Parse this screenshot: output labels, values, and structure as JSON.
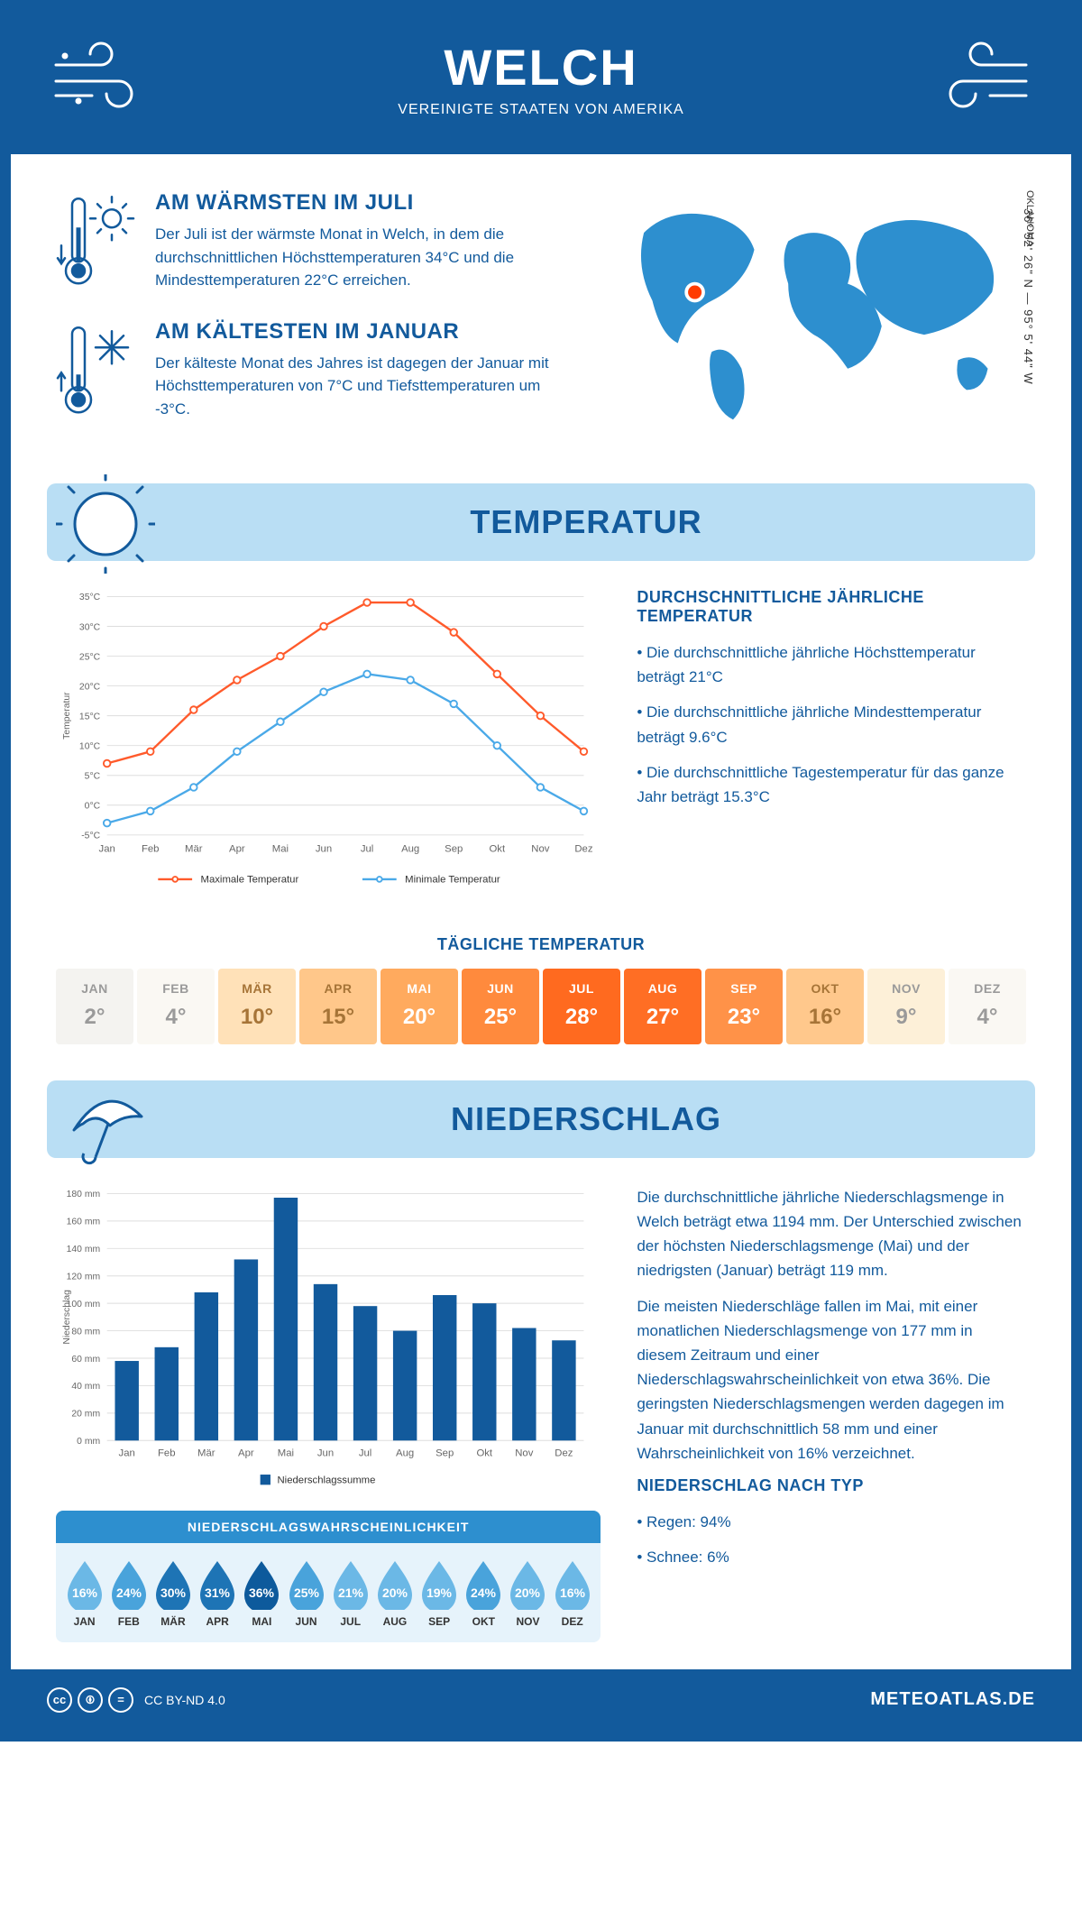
{
  "header": {
    "title": "WELCH",
    "subtitle": "VEREINIGTE STAATEN VON AMERIKA"
  },
  "location": {
    "region": "OKLAHOMA",
    "coords": "36° 52' 26\" N — 95° 5' 44\" W",
    "marker_color": "#ff3b00"
  },
  "facts": {
    "warm": {
      "title": "AM WÄRMSTEN IM JULI",
      "text": "Der Juli ist der wärmste Monat in Welch, in dem die durchschnittlichen Höchsttemperaturen 34°C und die Mindesttemperaturen 22°C erreichen."
    },
    "cold": {
      "title": "AM KÄLTESTEN IM JANUAR",
      "text": "Der kälteste Monat des Jahres ist dagegen der Januar mit Höchsttemperaturen von 7°C und Tiefsttemperaturen um -3°C."
    }
  },
  "sections": {
    "temp_title": "TEMPERATUR",
    "precip_title": "NIEDERSCHLAG"
  },
  "temp_chart": {
    "type": "line",
    "months": [
      "Jan",
      "Feb",
      "Mär",
      "Apr",
      "Mai",
      "Jun",
      "Jul",
      "Aug",
      "Sep",
      "Okt",
      "Nov",
      "Dez"
    ],
    "max_series": {
      "label": "Maximale Temperatur",
      "color": "#ff5a2b",
      "values": [
        7,
        9,
        16,
        21,
        25,
        30,
        34,
        34,
        29,
        22,
        15,
        9
      ]
    },
    "min_series": {
      "label": "Minimale Temperatur",
      "color": "#4aa9e8",
      "values": [
        -3,
        -1,
        3,
        9,
        14,
        19,
        22,
        21,
        17,
        10,
        3,
        -1
      ]
    },
    "ylabel": "Temperatur",
    "ylim": [
      -5,
      35
    ],
    "ytick_step": 5,
    "ytick_suffix": "°C",
    "grid_color": "#dddddd",
    "background_color": "#ffffff",
    "line_width": 2.5,
    "marker": "circle",
    "marker_size": 4
  },
  "temp_facts": {
    "heading": "DURCHSCHNITTLICHE JÄHRLICHE TEMPERATUR",
    "bullets": [
      "Die durchschnittliche jährliche Höchsttemperatur beträgt 21°C",
      "Die durchschnittliche jährliche Mindesttemperatur beträgt 9.6°C",
      "Die durchschnittliche Tagestemperatur für das ganze Jahr beträgt 15.3°C"
    ]
  },
  "daily_temp": {
    "title": "TÄGLICHE TEMPERATUR",
    "months": [
      "JAN",
      "FEB",
      "MÄR",
      "APR",
      "MAI",
      "JUN",
      "JUL",
      "AUG",
      "SEP",
      "OKT",
      "NOV",
      "DEZ"
    ],
    "values": [
      "2°",
      "4°",
      "10°",
      "15°",
      "20°",
      "25°",
      "28°",
      "27°",
      "23°",
      "16°",
      "9°",
      "4°"
    ],
    "bg_colors": [
      "#f4f3f0",
      "#faf8f3",
      "#ffe1b8",
      "#ffc78a",
      "#ffaa5e",
      "#ff8a3d",
      "#ff6a1f",
      "#ff6e24",
      "#ff9248",
      "#ffc88c",
      "#fdf0d8",
      "#faf8f3"
    ],
    "text_colors": [
      "#9a9a9a",
      "#9a9a9a",
      "#a67437",
      "#a67437",
      "#ffffff",
      "#ffffff",
      "#ffffff",
      "#ffffff",
      "#ffffff",
      "#a67437",
      "#9a9a9a",
      "#9a9a9a"
    ]
  },
  "precip_chart": {
    "type": "bar",
    "months": [
      "Jan",
      "Feb",
      "Mär",
      "Apr",
      "Mai",
      "Jun",
      "Jul",
      "Aug",
      "Sep",
      "Okt",
      "Nov",
      "Dez"
    ],
    "values": [
      58,
      68,
      108,
      132,
      177,
      114,
      98,
      80,
      106,
      100,
      82,
      73
    ],
    "bar_color": "#125a9c",
    "ylabel": "Niederschlag",
    "ylim": [
      0,
      180
    ],
    "ytick_step": 20,
    "ytick_suffix": " mm",
    "grid_color": "#dddddd",
    "bar_width": 0.6,
    "legend_label": "Niederschlagssumme"
  },
  "precip_text": {
    "p1": "Die durchschnittliche jährliche Niederschlagsmenge in Welch beträgt etwa 1194 mm. Der Unterschied zwischen der höchsten Niederschlagsmenge (Mai) und der niedrigsten (Januar) beträgt 119 mm.",
    "p2": "Die meisten Niederschläge fallen im Mai, mit einer monatlichen Niederschlagsmenge von 177 mm in diesem Zeitraum und einer Niederschlagswahrscheinlichkeit von etwa 36%. Die geringsten Niederschlagsmengen werden dagegen im Januar mit durchschnittlich 58 mm und einer Wahrscheinlichkeit von 16% verzeichnet.",
    "by_type_title": "NIEDERSCHLAG NACH TYP",
    "by_type": [
      "Regen: 94%",
      "Schnee: 6%"
    ]
  },
  "precip_prob": {
    "title": "NIEDERSCHLAGSWAHRSCHEINLICHKEIT",
    "months": [
      "JAN",
      "FEB",
      "MÄR",
      "APR",
      "MAI",
      "JUN",
      "JUL",
      "AUG",
      "SEP",
      "OKT",
      "NOV",
      "DEZ"
    ],
    "values": [
      "16%",
      "24%",
      "30%",
      "31%",
      "36%",
      "25%",
      "21%",
      "20%",
      "19%",
      "24%",
      "20%",
      "16%"
    ],
    "colors": [
      "#6bb8e6",
      "#49a3db",
      "#1e74b5",
      "#1e74b5",
      "#0d5a9c",
      "#49a3db",
      "#6bb8e6",
      "#6bb8e6",
      "#6bb8e6",
      "#49a3db",
      "#6bb8e6",
      "#6bb8e6"
    ]
  },
  "footer": {
    "license": "CC BY-ND 4.0",
    "site": "METEOATLAS.DE"
  },
  "palette": {
    "brand": "#125a9c",
    "accent_light": "#b9def4",
    "map_fill": "#2d8fcf"
  }
}
